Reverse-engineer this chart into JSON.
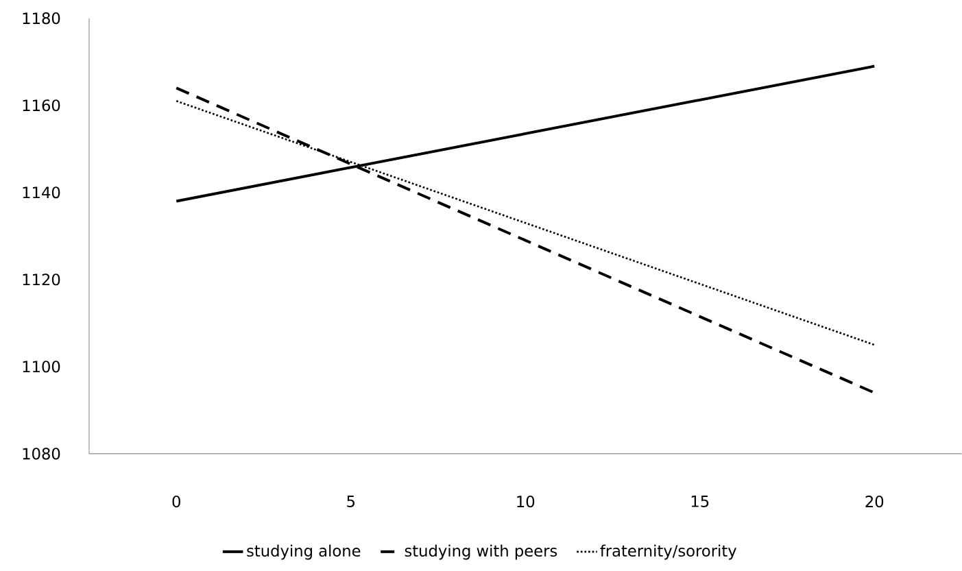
{
  "chart_data": {
    "type": "line",
    "x": [
      0,
      20
    ],
    "series": [
      {
        "name": "studying alone",
        "color": "#000000",
        "line_style": "solid",
        "values": [
          1138,
          1169
        ]
      },
      {
        "name": "studying with peers",
        "color": "#000000",
        "line_style": "dashed",
        "values": [
          1164,
          1094
        ]
      },
      {
        "name": "fraternity/sorority",
        "color": "#000000",
        "line_style": "dotted",
        "values": [
          1161,
          1105
        ]
      }
    ],
    "xlim": [
      -2.5,
      22.5
    ],
    "xticks": [
      0,
      5,
      10,
      15,
      20
    ],
    "ylim": [
      1080,
      1180
    ],
    "yticks": [
      1080,
      1100,
      1120,
      1140,
      1160,
      1180
    ],
    "legend": "bottom",
    "marker": "none"
  }
}
